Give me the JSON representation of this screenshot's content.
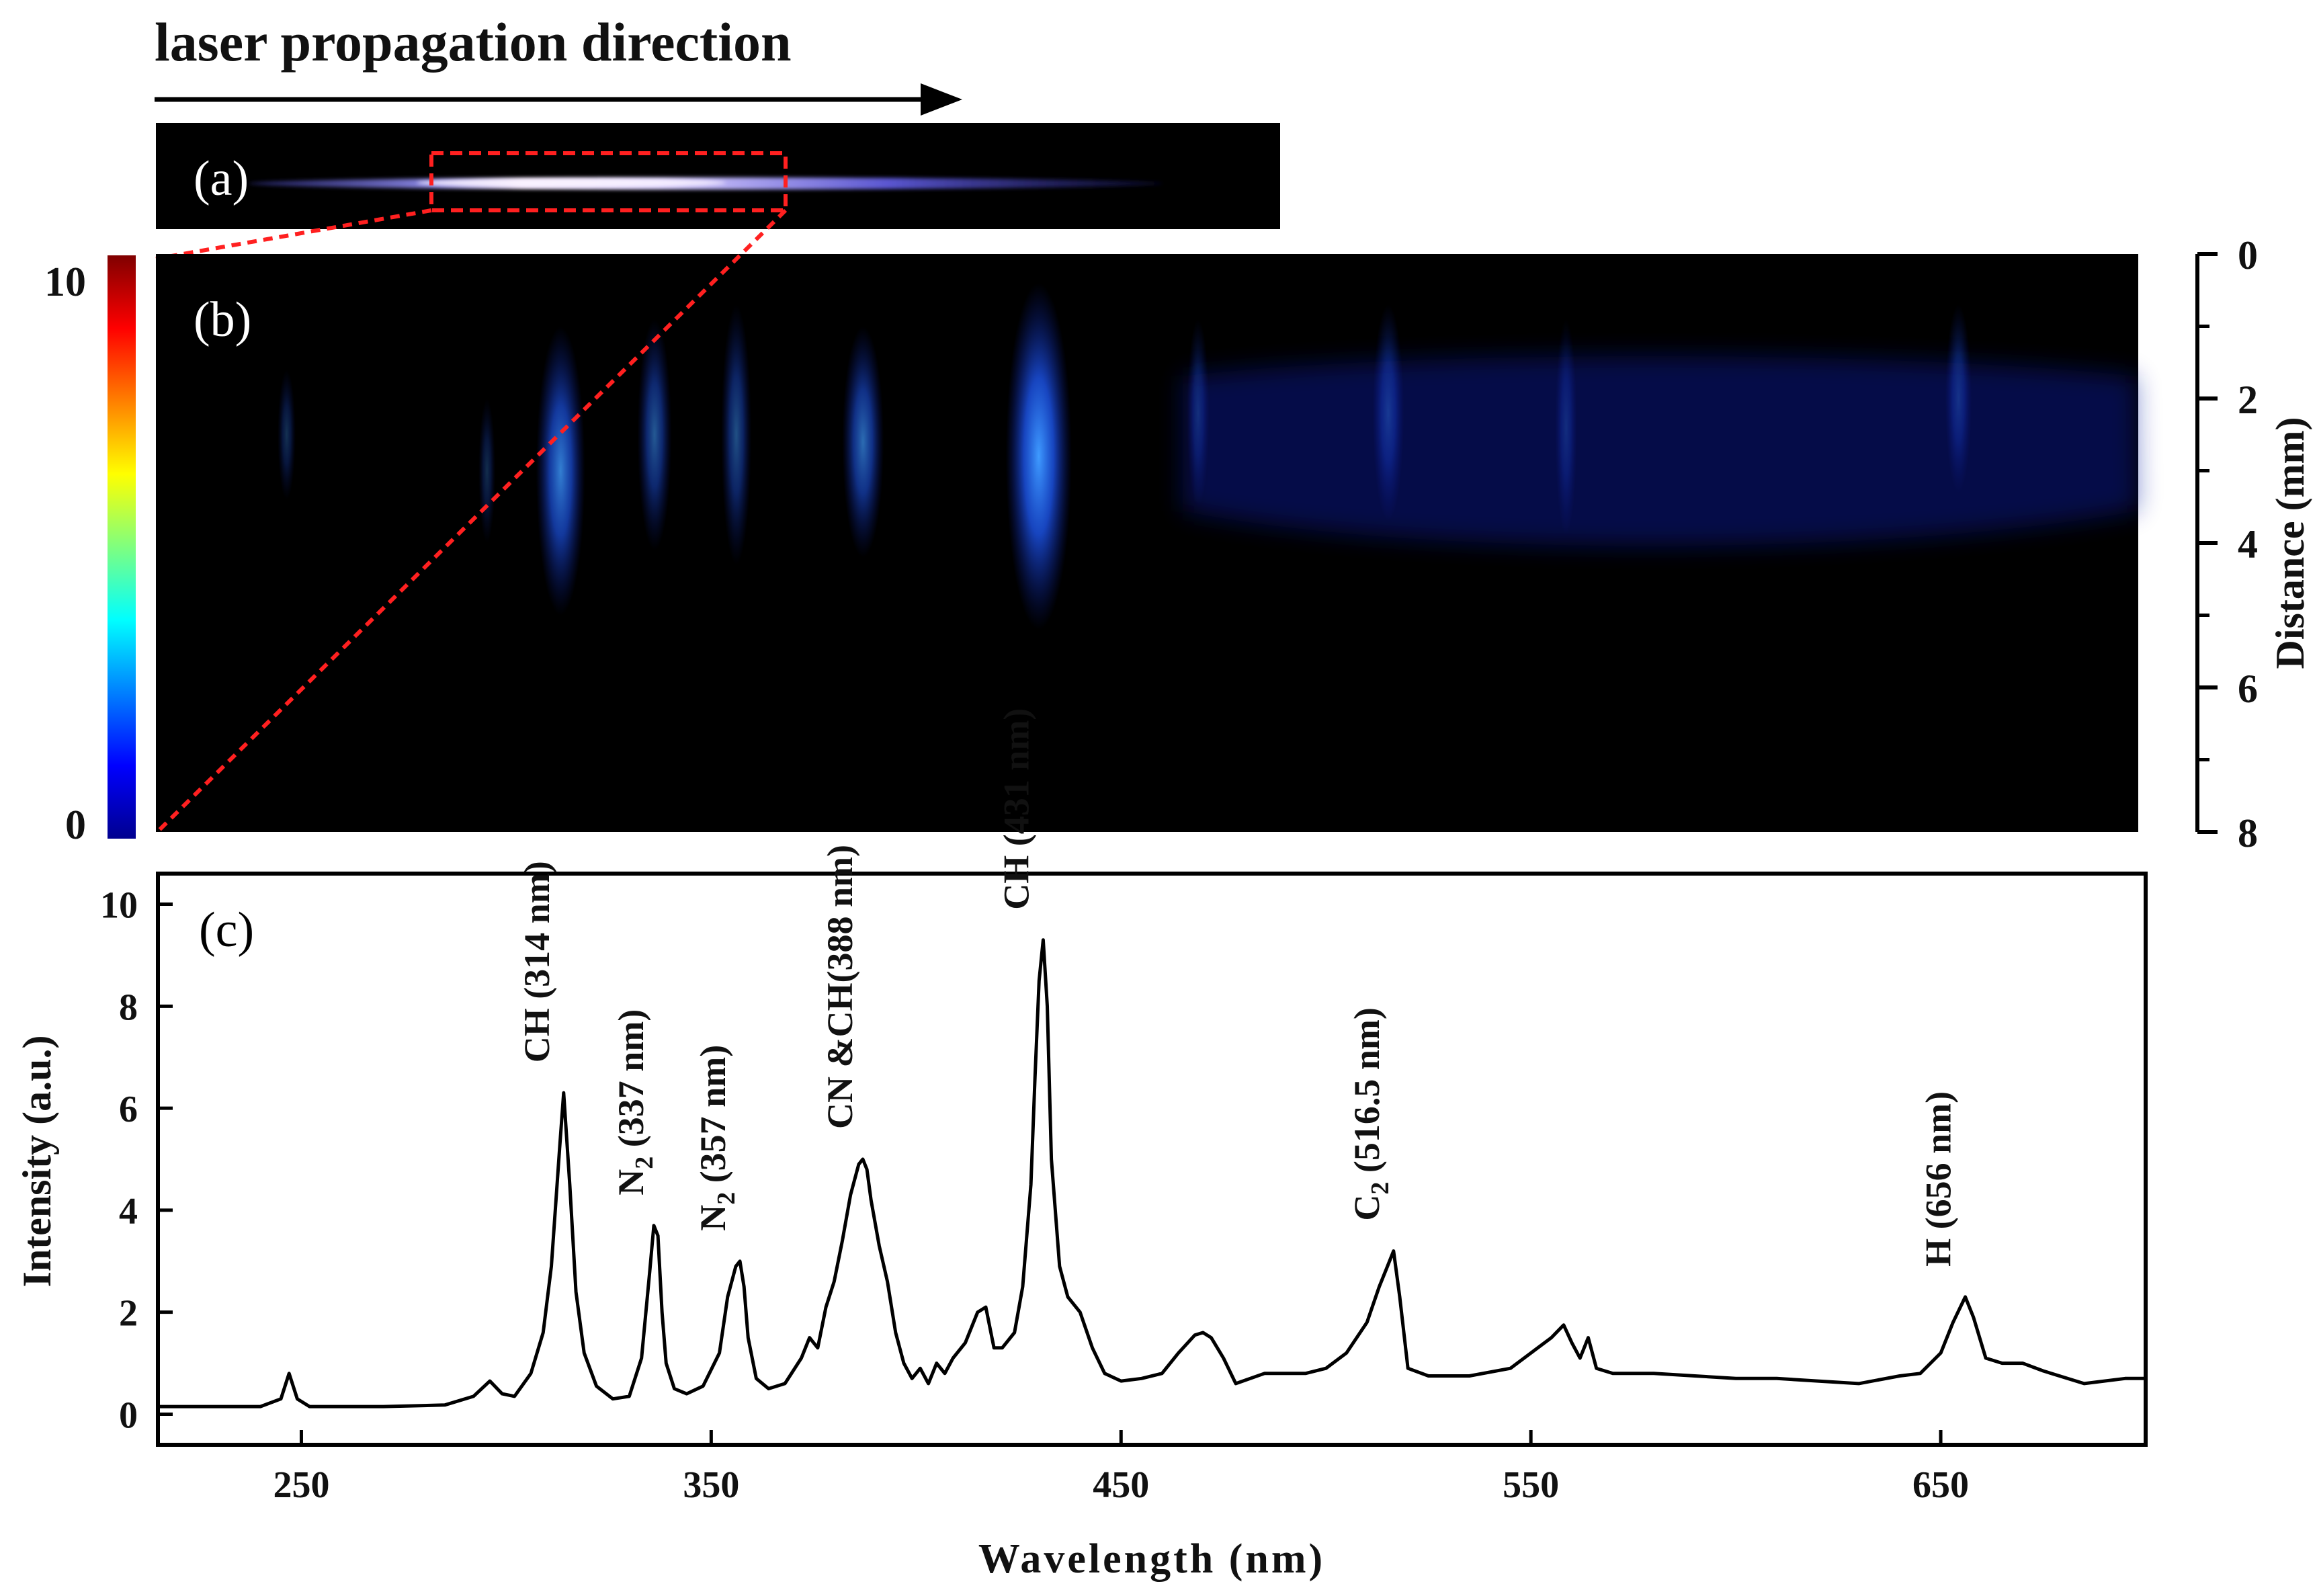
{
  "header": {
    "title": "laser propagation direction"
  },
  "panels": {
    "a": "(a)",
    "b": "(b)",
    "c": "(c)"
  },
  "colorbar": {
    "max_label": "10",
    "min_label": "0"
  },
  "colors": {
    "trace": "#000000",
    "selection": "#ff2020",
    "background_map": "#000000",
    "emission": "#1e6fff"
  },
  "chart_data": [
    {
      "type": "heatmap",
      "title": "",
      "xlabel": "Wavelength (nm)",
      "ylabel": "Distance (mm)",
      "xlim": [
        215,
        700
      ],
      "ylim": [
        0,
        8
      ],
      "yticks": [
        "0",
        "2",
        "4",
        "6",
        "8"
      ],
      "clim": [
        0,
        10
      ],
      "bands": [
        {
          "wavelength": 247,
          "peak_distance": 2.5,
          "spread": 0.9,
          "intensity": 0.8
        },
        {
          "wavelength": 296,
          "peak_distance": 3.0,
          "spread": 1.0,
          "intensity": 0.6
        },
        {
          "wavelength": 314,
          "peak_distance": 3.0,
          "spread": 2.0,
          "intensity": 6.3
        },
        {
          "wavelength": 337,
          "peak_distance": 2.5,
          "spread": 1.6,
          "intensity": 3.7
        },
        {
          "wavelength": 357,
          "peak_distance": 2.5,
          "spread": 1.8,
          "intensity": 3.0
        },
        {
          "wavelength": 388,
          "peak_distance": 2.6,
          "spread": 1.6,
          "intensity": 5.0
        },
        {
          "wavelength": 431,
          "peak_distance": 2.8,
          "spread": 2.4,
          "intensity": 9.3
        },
        {
          "wavelength": 470,
          "peak_distance": 2.2,
          "spread": 1.3,
          "intensity": 1.6
        },
        {
          "wavelength": 516.5,
          "peak_distance": 2.2,
          "spread": 1.5,
          "intensity": 3.2
        },
        {
          "wavelength": 560,
          "peak_distance": 2.4,
          "spread": 1.5,
          "intensity": 1.5
        },
        {
          "wavelength": 656,
          "peak_distance": 2.0,
          "spread": 1.3,
          "intensity": 2.3
        }
      ]
    },
    {
      "type": "line",
      "title": "",
      "xlabel": "Wavelength (nm)",
      "ylabel": "Intensity (a.u.)",
      "xlim": [
        215,
        700
      ],
      "ylim": [
        -0.6,
        10.6
      ],
      "xticks": [
        "250",
        "350",
        "450",
        "550",
        "650"
      ],
      "yticks": [
        "0",
        "2",
        "4",
        "6",
        "8",
        "10"
      ],
      "series": [
        {
          "name": "spectrum",
          "x": [
            215,
            240,
            245,
            247,
            249,
            252,
            270,
            285,
            292,
            296,
            299,
            302,
            306,
            309,
            311,
            313,
            314,
            315.5,
            317,
            319,
            322,
            326,
            330,
            333,
            335,
            336,
            337,
            338,
            339,
            341,
            344,
            348,
            352,
            354,
            356,
            357,
            358,
            359,
            361,
            364,
            368,
            372,
            374,
            376,
            378,
            380,
            382,
            384,
            386,
            387,
            388,
            389,
            391,
            393,
            395,
            397,
            399,
            401,
            403,
            405,
            407,
            409,
            412,
            415,
            417,
            419,
            421,
            424,
            426,
            428,
            429,
            430,
            431,
            432,
            433,
            435,
            437,
            440,
            443,
            446,
            450,
            455,
            460,
            464,
            468,
            470,
            472,
            475,
            478,
            485,
            495,
            500,
            505,
            510,
            513,
            515,
            516.5,
            518,
            520,
            525,
            535,
            545,
            550,
            555,
            558,
            560,
            562,
            564,
            566,
            570,
            580,
            590,
            600,
            610,
            620,
            630,
            640,
            645,
            650,
            653,
            656,
            658,
            661,
            665,
            670,
            675,
            685,
            695,
            700
          ],
          "y": [
            0.15,
            0.15,
            0.3,
            0.8,
            0.3,
            0.15,
            0.15,
            0.18,
            0.35,
            0.65,
            0.4,
            0.35,
            0.8,
            1.6,
            2.9,
            5.2,
            6.3,
            4.5,
            2.4,
            1.2,
            0.55,
            0.3,
            0.35,
            1.1,
            2.8,
            3.7,
            3.5,
            2.0,
            1.0,
            0.5,
            0.4,
            0.55,
            1.2,
            2.3,
            2.9,
            3.0,
            2.5,
            1.5,
            0.7,
            0.5,
            0.6,
            1.1,
            1.5,
            1.3,
            2.1,
            2.6,
            3.4,
            4.3,
            4.9,
            5.0,
            4.8,
            4.2,
            3.3,
            2.6,
            1.6,
            1.0,
            0.7,
            0.9,
            0.6,
            1.0,
            0.8,
            1.1,
            1.4,
            2.0,
            2.1,
            1.3,
            1.3,
            1.6,
            2.5,
            4.5,
            6.6,
            8.5,
            9.3,
            8.0,
            5.0,
            2.9,
            2.3,
            2.0,
            1.3,
            0.8,
            0.65,
            0.7,
            0.8,
            1.2,
            1.55,
            1.6,
            1.5,
            1.1,
            0.6,
            0.8,
            0.8,
            0.9,
            1.2,
            1.8,
            2.5,
            2.9,
            3.2,
            2.3,
            0.9,
            0.75,
            0.75,
            0.9,
            1.2,
            1.5,
            1.75,
            1.4,
            1.1,
            1.5,
            0.9,
            0.8,
            0.8,
            0.75,
            0.7,
            0.7,
            0.65,
            0.6,
            0.75,
            0.8,
            1.2,
            1.8,
            2.3,
            1.9,
            1.1,
            1.0,
            1.0,
            0.85,
            0.6,
            0.7,
            0.7
          ]
        }
      ],
      "annotations": [
        {
          "text": "CH (314 nm)",
          "x": 314,
          "peak": 6.3
        },
        {
          "text": "N2 (337 nm)",
          "x": 337,
          "peak": 3.7
        },
        {
          "text": "N2 (357 nm)",
          "x": 357,
          "peak": 3.0
        },
        {
          "text": "CN &CH(388 nm)",
          "x": 388,
          "peak": 5.0
        },
        {
          "text": "CH (431 nm)",
          "x": 431,
          "peak": 9.3
        },
        {
          "text": "C2 (516.5 nm)",
          "x": 516.5,
          "peak": 3.2
        },
        {
          "text": "H (656 nm)",
          "x": 656,
          "peak": 2.3
        }
      ]
    }
  ]
}
